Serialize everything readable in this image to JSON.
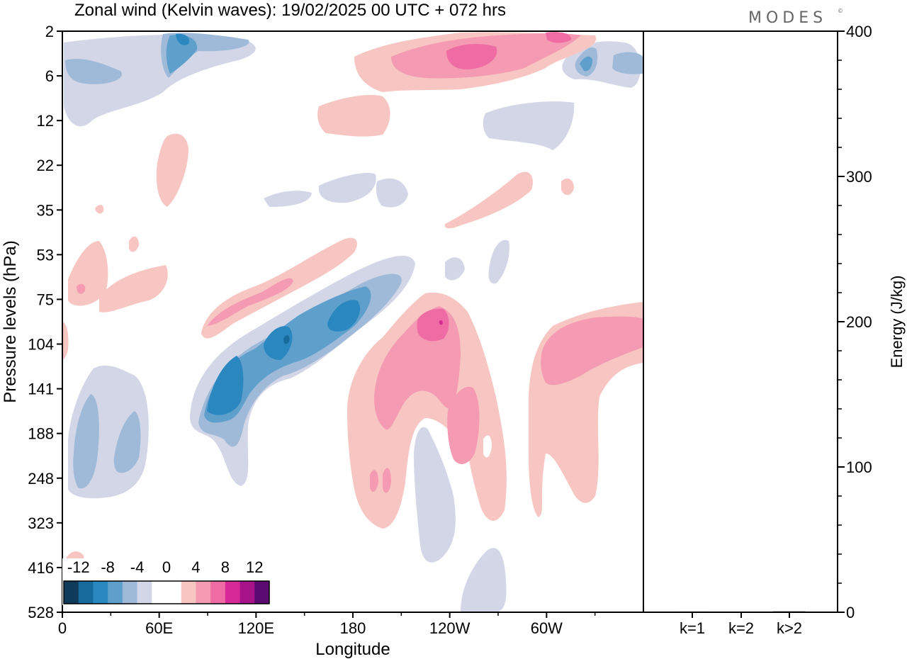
{
  "title": "Zonal wind (Kelvin waves):  19/02/2025  00 UTC  + 072 hrs",
  "brand": "MODES",
  "brand_mark": "©",
  "colors": {
    "neg": [
      "#0e3a5c",
      "#176a9c",
      "#2a87bf",
      "#5e9fcb",
      "#9fbad9",
      "#d2d6e7"
    ],
    "zero": "#ffffff",
    "pos": [
      "#f7c6c2",
      "#f59ab3",
      "#ef6ba3",
      "#d72996",
      "#a7138a",
      "#5b0a73"
    ],
    "frame": "#000000"
  },
  "chart_data": [
    {
      "type": "heatmap",
      "title": "Zonal wind (Kelvin waves):  19/02/2025  00 UTC  + 072 hrs",
      "xlabel": "Longitude",
      "ylabel": "Pressure levels (hPa)",
      "x_ticks": [
        "0",
        "60E",
        "120E",
        "180",
        "120W",
        "60W"
      ],
      "x_tick_values": [
        0,
        60,
        120,
        180,
        240,
        300
      ],
      "xlim": [
        0,
        360
      ],
      "y_ticks": [
        "2",
        "6",
        "12",
        "22",
        "35",
        "53",
        "75",
        "104",
        "141",
        "188",
        "248",
        "323",
        "416",
        "528"
      ],
      "y_scale": "categorical pressure levels, top to bottom",
      "colorbar": {
        "labels": [
          "-12",
          "-8",
          "-4",
          "0",
          "4",
          "8",
          "12"
        ],
        "levels": [
          -14,
          -12,
          -10,
          -8,
          -6,
          -4,
          -2,
          2,
          4,
          6,
          8,
          10,
          12,
          14
        ]
      },
      "features": [
        {
          "sign": "negative",
          "lon": [
            12,
            20
          ],
          "level": [
            1.0,
            1.8
          ],
          "value": -2
        },
        {
          "sign": "negative",
          "lon": [
            62,
            72
          ],
          "level": [
            0.0,
            0.9
          ],
          "value": -10
        },
        {
          "sign": "positive",
          "lon": [
            210,
            265
          ],
          "level": [
            0.1,
            1.0
          ],
          "value": 8
        },
        {
          "sign": "negative",
          "lon": [
            300,
            310
          ],
          "level": [
            0.4,
            1.0
          ],
          "value": -8
        },
        {
          "sign": "negative",
          "lon": [
            90,
            185
          ],
          "level": [
            5.5,
            8.3
          ],
          "value": -12
        },
        {
          "sign": "positive",
          "lon": [
            90,
            160
          ],
          "level": [
            5.0,
            7.5
          ],
          "value": 6
        },
        {
          "sign": "positive",
          "lon": [
            232,
            248
          ],
          "level": [
            6.2,
            7.8
          ],
          "value": 10
        },
        {
          "sign": "positive",
          "lon": [
            186,
            250
          ],
          "level": [
            6.0,
            11.0
          ],
          "value": 6
        },
        {
          "sign": "positive",
          "lon": [
            290,
            360
          ],
          "level": [
            6.2,
            10.5
          ],
          "value": 4
        },
        {
          "sign": "negative",
          "lon": [
            10,
            40
          ],
          "level": [
            8.0,
            10.3
          ],
          "value": -4
        }
      ]
    },
    {
      "type": "bar",
      "categories": [
        "k=1",
        "k=2",
        "k>2"
      ],
      "values": [
        0.5,
        0.3,
        0.6
      ],
      "ylabel": "Energy (J/kg)",
      "ylim": [
        0,
        400
      ],
      "y_ticks": [
        "0",
        "100",
        "200",
        "300",
        "400"
      ]
    }
  ]
}
